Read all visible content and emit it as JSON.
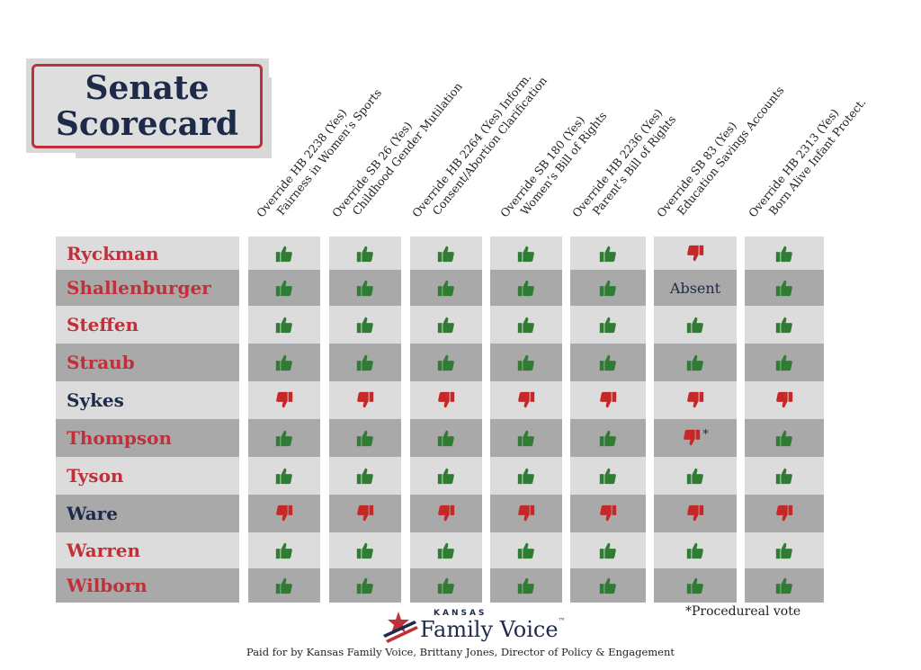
{
  "title": {
    "line1": "Senate",
    "line2": "Scorecard"
  },
  "columns": [
    {
      "line1": "Override HB 2238 (Yes)",
      "line2": "Fairness in Women’s Sports"
    },
    {
      "line1": "Override SB 26 (Yes)",
      "line2": "Childhood Gender Mutilation"
    },
    {
      "line1": "Override HB 2264 (Yes) Inform.",
      "line2": "Consent/Abortion Clarification"
    },
    {
      "line1": "Override SB 180 (Yes)",
      "line2": "Women’s Bill of Rights"
    },
    {
      "line1": "Override HB 2236 (Yes)",
      "line2": "Parent’s Bill of Rights"
    },
    {
      "line1": "Override SB 83 (Yes)",
      "line2": "Education Savings Accounts"
    },
    {
      "line1": "Override HB 2313 (Yes)",
      "line2": "Born Alive Infant Protect."
    }
  ],
  "rows": [
    {
      "name": "Ryckman",
      "party_color": "red",
      "votes": [
        "up",
        "up",
        "up",
        "up",
        "up",
        "down",
        "up"
      ]
    },
    {
      "name": "Shallenburger",
      "party_color": "red",
      "votes": [
        "up",
        "up",
        "up",
        "up",
        "up",
        "absent",
        "up"
      ]
    },
    {
      "name": "Steffen",
      "party_color": "red",
      "votes": [
        "up",
        "up",
        "up",
        "up",
        "up",
        "up",
        "up"
      ]
    },
    {
      "name": "Straub",
      "party_color": "red",
      "votes": [
        "up",
        "up",
        "up",
        "up",
        "up",
        "up",
        "up"
      ]
    },
    {
      "name": "Sykes",
      "party_color": "navy",
      "votes": [
        "down",
        "down",
        "down",
        "down",
        "down",
        "down",
        "down"
      ]
    },
    {
      "name": "Thompson",
      "party_color": "red",
      "votes": [
        "up",
        "up",
        "up",
        "up",
        "up",
        "down*",
        "up"
      ]
    },
    {
      "name": "Tyson",
      "party_color": "red",
      "votes": [
        "up",
        "up",
        "up",
        "up",
        "up",
        "up",
        "up"
      ]
    },
    {
      "name": "Ware",
      "party_color": "navy",
      "votes": [
        "down",
        "down",
        "down",
        "down",
        "down",
        "down",
        "down"
      ]
    },
    {
      "name": "Warren",
      "party_color": "red",
      "votes": [
        "up",
        "up",
        "up",
        "up",
        "up",
        "up",
        "up"
      ]
    },
    {
      "name": "Wilborn",
      "party_color": "red",
      "votes": [
        "up",
        "up",
        "up",
        "up",
        "up",
        "up",
        "up"
      ]
    }
  ],
  "absent_label": "Absent",
  "star_mark": "*",
  "note": "*Procedureal vote",
  "logo": {
    "small": "KANSAS",
    "big": "Family Voice",
    "tm": "™"
  },
  "footer": "Paid for by Kansas Family Voice, Brittany Jones, Director of Policy & Engagement",
  "colors": {
    "up": "#2e7d32",
    "down": "#c62828",
    "red_name": "#c0303a",
    "navy_name": "#1e2a4a"
  },
  "icons": {
    "up": "thumbs-up-icon",
    "down": "thumbs-down-icon",
    "logo": "star-flag-logo-icon"
  }
}
